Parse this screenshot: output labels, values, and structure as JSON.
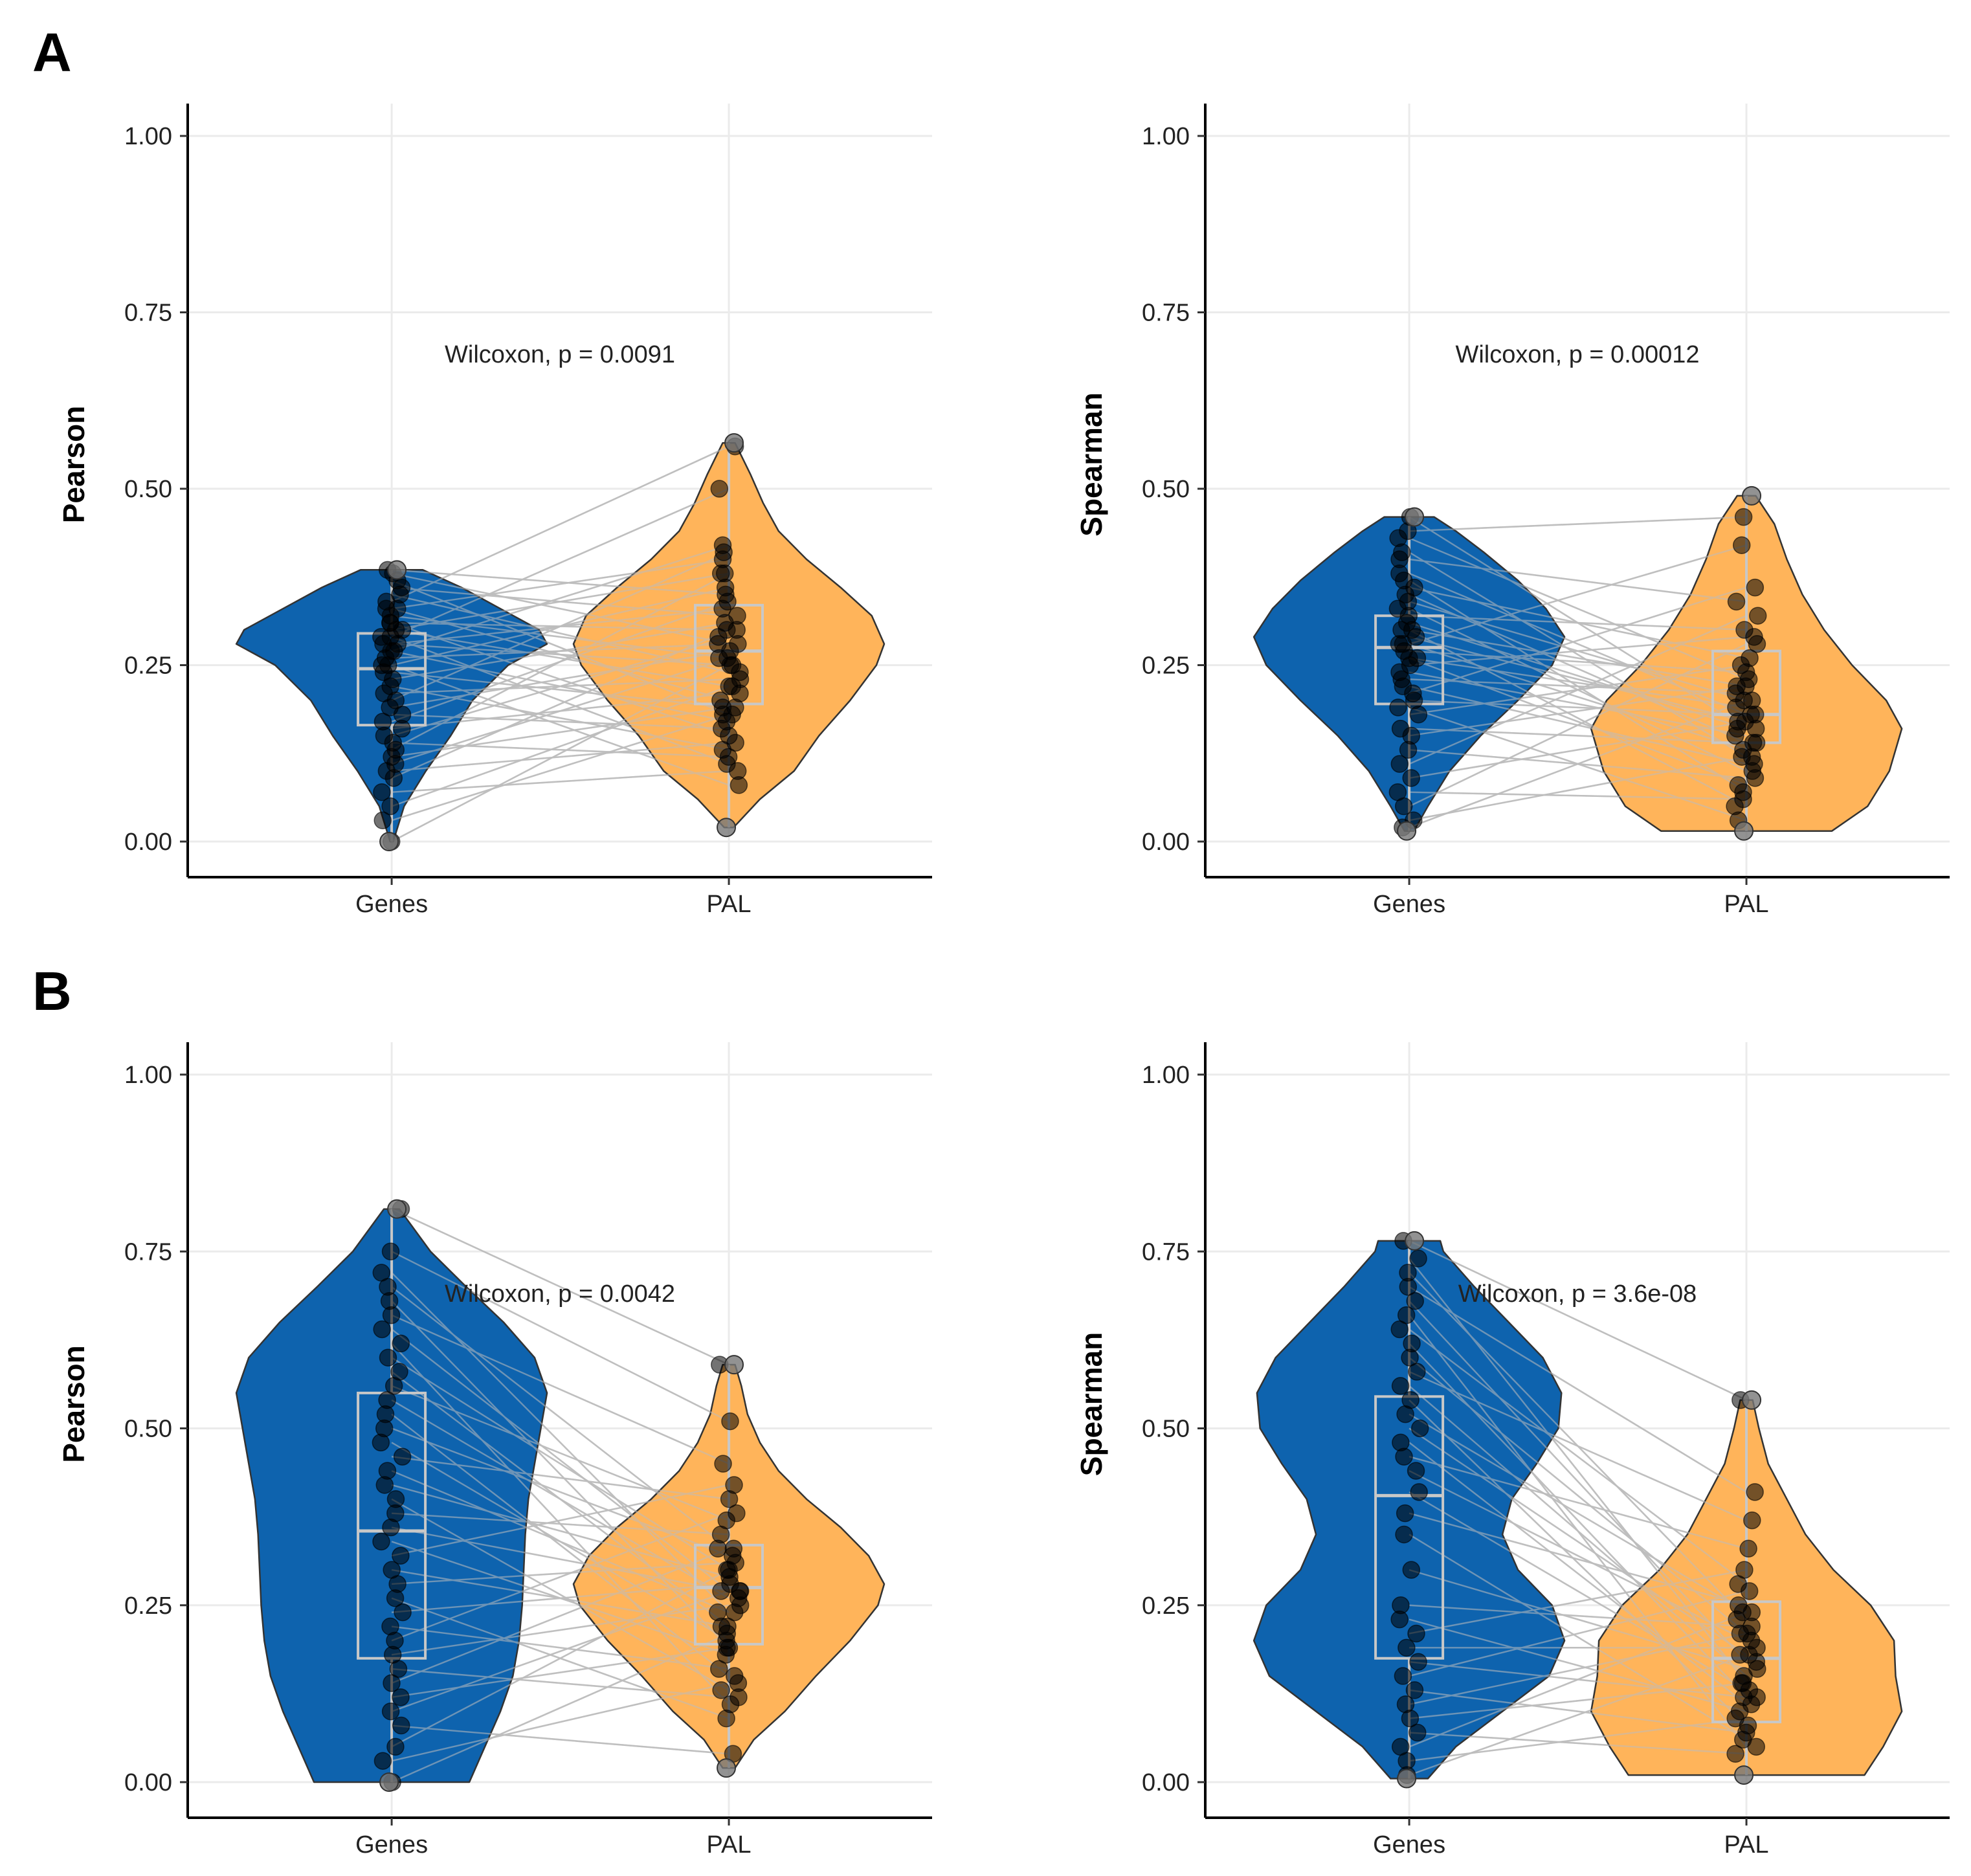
{
  "figure": {
    "panel_labels": [
      "A",
      "B"
    ]
  },
  "colors": {
    "genes": "#0E63AE",
    "pal": "#FFB45A",
    "grid": "#EBEBEB",
    "pair_line": "#BDBDBD",
    "box": "#C8C8C8",
    "point": "#000000"
  },
  "chart_data": [
    {
      "id": "A-pearson",
      "panel": "A",
      "type": "violin",
      "title": "",
      "xlabel": "",
      "ylabel": "Pearson",
      "ylim": [
        0,
        1
      ],
      "yticks": [
        "0.00",
        "0.25",
        "0.50",
        "0.75",
        "1.00"
      ],
      "categories": [
        "Genes",
        "PAL"
      ],
      "annotation": "Wilcoxon, p = 0.0091",
      "groups": [
        {
          "name": "Genes",
          "min": 0.0,
          "q1": 0.165,
          "median": 0.245,
          "q3": 0.295,
          "max": 0.385,
          "violin": [
            [
              0.0,
              0.01
            ],
            [
              0.05,
              0.08
            ],
            [
              0.1,
              0.22
            ],
            [
              0.15,
              0.38
            ],
            [
              0.2,
              0.52
            ],
            [
              0.25,
              0.75
            ],
            [
              0.28,
              1.0
            ],
            [
              0.3,
              0.95
            ],
            [
              0.33,
              0.7
            ],
            [
              0.36,
              0.45
            ],
            [
              0.385,
              0.2
            ]
          ]
        },
        {
          "name": "PAL",
          "min": 0.02,
          "q1": 0.195,
          "median": 0.27,
          "q3": 0.335,
          "max": 0.565,
          "violin": [
            [
              0.02,
              0.03
            ],
            [
              0.06,
              0.2
            ],
            [
              0.1,
              0.42
            ],
            [
              0.15,
              0.58
            ],
            [
              0.2,
              0.78
            ],
            [
              0.25,
              0.95
            ],
            [
              0.28,
              1.0
            ],
            [
              0.32,
              0.92
            ],
            [
              0.36,
              0.72
            ],
            [
              0.4,
              0.5
            ],
            [
              0.44,
              0.32
            ],
            [
              0.48,
              0.22
            ],
            [
              0.52,
              0.14
            ],
            [
              0.565,
              0.04
            ]
          ]
        }
      ],
      "pairs": [
        [
          0.0,
          0.25
        ],
        [
          0.03,
          0.18
        ],
        [
          0.05,
          0.22
        ],
        [
          0.07,
          0.1
        ],
        [
          0.09,
          0.3
        ],
        [
          0.1,
          0.14
        ],
        [
          0.11,
          0.26
        ],
        [
          0.12,
          0.19
        ],
        [
          0.13,
          0.38
        ],
        [
          0.14,
          0.12
        ],
        [
          0.15,
          0.29
        ],
        [
          0.16,
          0.21
        ],
        [
          0.17,
          0.34
        ],
        [
          0.18,
          0.16
        ],
        [
          0.19,
          0.27
        ],
        [
          0.2,
          0.41
        ],
        [
          0.21,
          0.23
        ],
        [
          0.22,
          0.13
        ],
        [
          0.23,
          0.31
        ],
        [
          0.24,
          0.19
        ],
        [
          0.25,
          0.36
        ],
        [
          0.25,
          0.08
        ],
        [
          0.26,
          0.28
        ],
        [
          0.27,
          0.42
        ],
        [
          0.27,
          0.17
        ],
        [
          0.28,
          0.25
        ],
        [
          0.28,
          0.33
        ],
        [
          0.29,
          0.5
        ],
        [
          0.29,
          0.11
        ],
        [
          0.3,
          0.22
        ],
        [
          0.3,
          0.38
        ],
        [
          0.31,
          0.15
        ],
        [
          0.31,
          0.3
        ],
        [
          0.32,
          0.26
        ],
        [
          0.33,
          0.4
        ],
        [
          0.33,
          0.2
        ],
        [
          0.34,
          0.56
        ],
        [
          0.35,
          0.24
        ],
        [
          0.36,
          0.32
        ],
        [
          0.37,
          0.18
        ],
        [
          0.38,
          0.28
        ],
        [
          0.385,
          0.35
        ]
      ]
    },
    {
      "id": "A-spearman",
      "panel": "A",
      "type": "violin",
      "title": "",
      "xlabel": "",
      "ylabel": "Spearman",
      "ylim": [
        0,
        1
      ],
      "yticks": [
        "0.00",
        "0.25",
        "0.50",
        "0.75",
        "1.00"
      ],
      "categories": [
        "Genes",
        "PAL"
      ],
      "annotation": "Wilcoxon, p = 0.00012",
      "groups": [
        {
          "name": "Genes",
          "min": 0.015,
          "q1": 0.195,
          "median": 0.275,
          "q3": 0.32,
          "max": 0.46,
          "violin": [
            [
              0.015,
              0.03
            ],
            [
              0.05,
              0.12
            ],
            [
              0.1,
              0.26
            ],
            [
              0.15,
              0.46
            ],
            [
              0.2,
              0.7
            ],
            [
              0.25,
              0.92
            ],
            [
              0.29,
              1.0
            ],
            [
              0.33,
              0.88
            ],
            [
              0.37,
              0.7
            ],
            [
              0.41,
              0.48
            ],
            [
              0.44,
              0.3
            ],
            [
              0.46,
              0.16
            ]
          ]
        },
        {
          "name": "PAL",
          "min": 0.015,
          "q1": 0.14,
          "median": 0.18,
          "q3": 0.27,
          "max": 0.49,
          "violin": [
            [
              0.015,
              0.55
            ],
            [
              0.05,
              0.78
            ],
            [
              0.1,
              0.92
            ],
            [
              0.16,
              1.0
            ],
            [
              0.2,
              0.9
            ],
            [
              0.25,
              0.68
            ],
            [
              0.3,
              0.5
            ],
            [
              0.35,
              0.36
            ],
            [
              0.4,
              0.26
            ],
            [
              0.45,
              0.18
            ],
            [
              0.49,
              0.06
            ]
          ]
        }
      ],
      "pairs": [
        [
          0.02,
          0.2
        ],
        [
          0.03,
          0.12
        ],
        [
          0.05,
          0.28
        ],
        [
          0.07,
          0.06
        ],
        [
          0.09,
          0.17
        ],
        [
          0.11,
          0.32
        ],
        [
          0.13,
          0.09
        ],
        [
          0.15,
          0.22
        ],
        [
          0.16,
          0.14
        ],
        [
          0.18,
          0.25
        ],
        [
          0.19,
          0.03
        ],
        [
          0.2,
          0.18
        ],
        [
          0.21,
          0.36
        ],
        [
          0.22,
          0.11
        ],
        [
          0.23,
          0.21
        ],
        [
          0.24,
          0.15
        ],
        [
          0.25,
          0.29
        ],
        [
          0.26,
          0.08
        ],
        [
          0.26,
          0.19
        ],
        [
          0.27,
          0.24
        ],
        [
          0.28,
          0.13
        ],
        [
          0.28,
          0.42
        ],
        [
          0.29,
          0.17
        ],
        [
          0.3,
          0.05
        ],
        [
          0.3,
          0.22
        ],
        [
          0.31,
          0.16
        ],
        [
          0.32,
          0.3
        ],
        [
          0.33,
          0.1
        ],
        [
          0.34,
          0.2
        ],
        [
          0.35,
          0.14
        ],
        [
          0.36,
          0.26
        ],
        [
          0.37,
          0.07
        ],
        [
          0.38,
          0.18
        ],
        [
          0.4,
          0.34
        ],
        [
          0.41,
          0.12
        ],
        [
          0.43,
          0.23
        ],
        [
          0.44,
          0.46
        ],
        [
          0.46,
          0.16
        ]
      ]
    },
    {
      "id": "B-pearson",
      "panel": "B",
      "type": "violin",
      "title": "",
      "xlabel": "",
      "ylabel": "Pearson",
      "ylim": [
        0,
        1
      ],
      "yticks": [
        "0.00",
        "0.25",
        "0.50",
        "0.75",
        "1.00"
      ],
      "categories": [
        "Genes",
        "PAL"
      ],
      "annotation": "Wilcoxon, p = 0.0042",
      "groups": [
        {
          "name": "Genes",
          "min": 0.0,
          "q1": 0.175,
          "median": 0.355,
          "q3": 0.55,
          "max": 0.81,
          "violin": [
            [
              0.0,
              0.5
            ],
            [
              0.05,
              0.6
            ],
            [
              0.1,
              0.7
            ],
            [
              0.15,
              0.78
            ],
            [
              0.2,
              0.82
            ],
            [
              0.25,
              0.84
            ],
            [
              0.3,
              0.85
            ],
            [
              0.35,
              0.86
            ],
            [
              0.4,
              0.88
            ],
            [
              0.45,
              0.92
            ],
            [
              0.5,
              0.96
            ],
            [
              0.55,
              1.0
            ],
            [
              0.6,
              0.92
            ],
            [
              0.65,
              0.72
            ],
            [
              0.7,
              0.48
            ],
            [
              0.75,
              0.25
            ],
            [
              0.81,
              0.05
            ]
          ]
        },
        {
          "name": "PAL",
          "min": 0.02,
          "q1": 0.195,
          "median": 0.275,
          "q3": 0.335,
          "max": 0.59,
          "violin": [
            [
              0.02,
              0.04
            ],
            [
              0.06,
              0.16
            ],
            [
              0.1,
              0.36
            ],
            [
              0.15,
              0.56
            ],
            [
              0.2,
              0.78
            ],
            [
              0.25,
              0.96
            ],
            [
              0.28,
              1.0
            ],
            [
              0.32,
              0.9
            ],
            [
              0.36,
              0.72
            ],
            [
              0.4,
              0.5
            ],
            [
              0.44,
              0.32
            ],
            [
              0.48,
              0.2
            ],
            [
              0.52,
              0.12
            ],
            [
              0.56,
              0.08
            ],
            [
              0.59,
              0.04
            ]
          ]
        }
      ],
      "pairs": [
        [
          0.0,
          0.21
        ],
        [
          0.03,
          0.14
        ],
        [
          0.05,
          0.3
        ],
        [
          0.08,
          0.04
        ],
        [
          0.1,
          0.27
        ],
        [
          0.12,
          0.19
        ],
        [
          0.14,
          0.33
        ],
        [
          0.16,
          0.12
        ],
        [
          0.18,
          0.25
        ],
        [
          0.2,
          0.38
        ],
        [
          0.22,
          0.16
        ],
        [
          0.24,
          0.28
        ],
        [
          0.26,
          0.09
        ],
        [
          0.28,
          0.31
        ],
        [
          0.3,
          0.22
        ],
        [
          0.32,
          0.42
        ],
        [
          0.34,
          0.18
        ],
        [
          0.36,
          0.27
        ],
        [
          0.38,
          0.35
        ],
        [
          0.4,
          0.13
        ],
        [
          0.42,
          0.29
        ],
        [
          0.44,
          0.24
        ],
        [
          0.46,
          0.4
        ],
        [
          0.48,
          0.2
        ],
        [
          0.5,
          0.32
        ],
        [
          0.52,
          0.15
        ],
        [
          0.54,
          0.26
        ],
        [
          0.56,
          0.37
        ],
        [
          0.58,
          0.22
        ],
        [
          0.6,
          0.3
        ],
        [
          0.62,
          0.11
        ],
        [
          0.64,
          0.27
        ],
        [
          0.66,
          0.45
        ],
        [
          0.68,
          0.19
        ],
        [
          0.7,
          0.33
        ],
        [
          0.72,
          0.24
        ],
        [
          0.75,
          0.51
        ],
        [
          0.81,
          0.59
        ]
      ]
    },
    {
      "id": "B-spearman",
      "panel": "B",
      "type": "violin",
      "title": "",
      "xlabel": "",
      "ylabel": "Spearman",
      "ylim": [
        0,
        1
      ],
      "yticks": [
        "0.00",
        "0.25",
        "0.50",
        "0.75",
        "1.00"
      ],
      "categories": [
        "Genes",
        "PAL"
      ],
      "annotation": "Wilcoxon, p = 3.6e-08",
      "groups": [
        {
          "name": "Genes",
          "min": 0.005,
          "q1": 0.175,
          "median": 0.405,
          "q3": 0.545,
          "max": 0.765,
          "violin": [
            [
              0.005,
              0.12
            ],
            [
              0.05,
              0.3
            ],
            [
              0.1,
              0.6
            ],
            [
              0.15,
              0.9
            ],
            [
              0.2,
              1.0
            ],
            [
              0.25,
              0.92
            ],
            [
              0.3,
              0.7
            ],
            [
              0.35,
              0.6
            ],
            [
              0.4,
              0.66
            ],
            [
              0.45,
              0.82
            ],
            [
              0.5,
              0.96
            ],
            [
              0.55,
              0.98
            ],
            [
              0.6,
              0.86
            ],
            [
              0.65,
              0.64
            ],
            [
              0.7,
              0.42
            ],
            [
              0.75,
              0.22
            ],
            [
              0.765,
              0.2
            ]
          ]
        },
        {
          "name": "PAL",
          "min": 0.01,
          "q1": 0.085,
          "median": 0.175,
          "q3": 0.255,
          "max": 0.54,
          "violin": [
            [
              0.01,
              0.76
            ],
            [
              0.05,
              0.88
            ],
            [
              0.1,
              1.0
            ],
            [
              0.15,
              0.96
            ],
            [
              0.2,
              0.95
            ],
            [
              0.25,
              0.8
            ],
            [
              0.3,
              0.56
            ],
            [
              0.35,
              0.38
            ],
            [
              0.4,
              0.26
            ],
            [
              0.45,
              0.14
            ],
            [
              0.5,
              0.08
            ],
            [
              0.54,
              0.04
            ]
          ]
        }
      ],
      "pairs": [
        [
          0.01,
          0.18
        ],
        [
          0.03,
          0.09
        ],
        [
          0.05,
          0.24
        ],
        [
          0.07,
          0.04
        ],
        [
          0.09,
          0.14
        ],
        [
          0.11,
          0.21
        ],
        [
          0.13,
          0.07
        ],
        [
          0.15,
          0.27
        ],
        [
          0.17,
          0.12
        ],
        [
          0.19,
          0.19
        ],
        [
          0.21,
          0.3
        ],
        [
          0.23,
          0.1
        ],
        [
          0.25,
          0.22
        ],
        [
          0.3,
          0.16
        ],
        [
          0.35,
          0.06
        ],
        [
          0.38,
          0.25
        ],
        [
          0.41,
          0.13
        ],
        [
          0.44,
          0.2
        ],
        [
          0.46,
          0.33
        ],
        [
          0.48,
          0.11
        ],
        [
          0.5,
          0.18
        ],
        [
          0.52,
          0.24
        ],
        [
          0.54,
          0.08
        ],
        [
          0.56,
          0.15
        ],
        [
          0.58,
          0.37
        ],
        [
          0.6,
          0.21
        ],
        [
          0.62,
          0.12
        ],
        [
          0.64,
          0.28
        ],
        [
          0.66,
          0.05
        ],
        [
          0.68,
          0.17
        ],
        [
          0.7,
          0.41
        ],
        [
          0.72,
          0.23
        ],
        [
          0.74,
          0.14
        ],
        [
          0.765,
          0.54
        ]
      ]
    }
  ]
}
